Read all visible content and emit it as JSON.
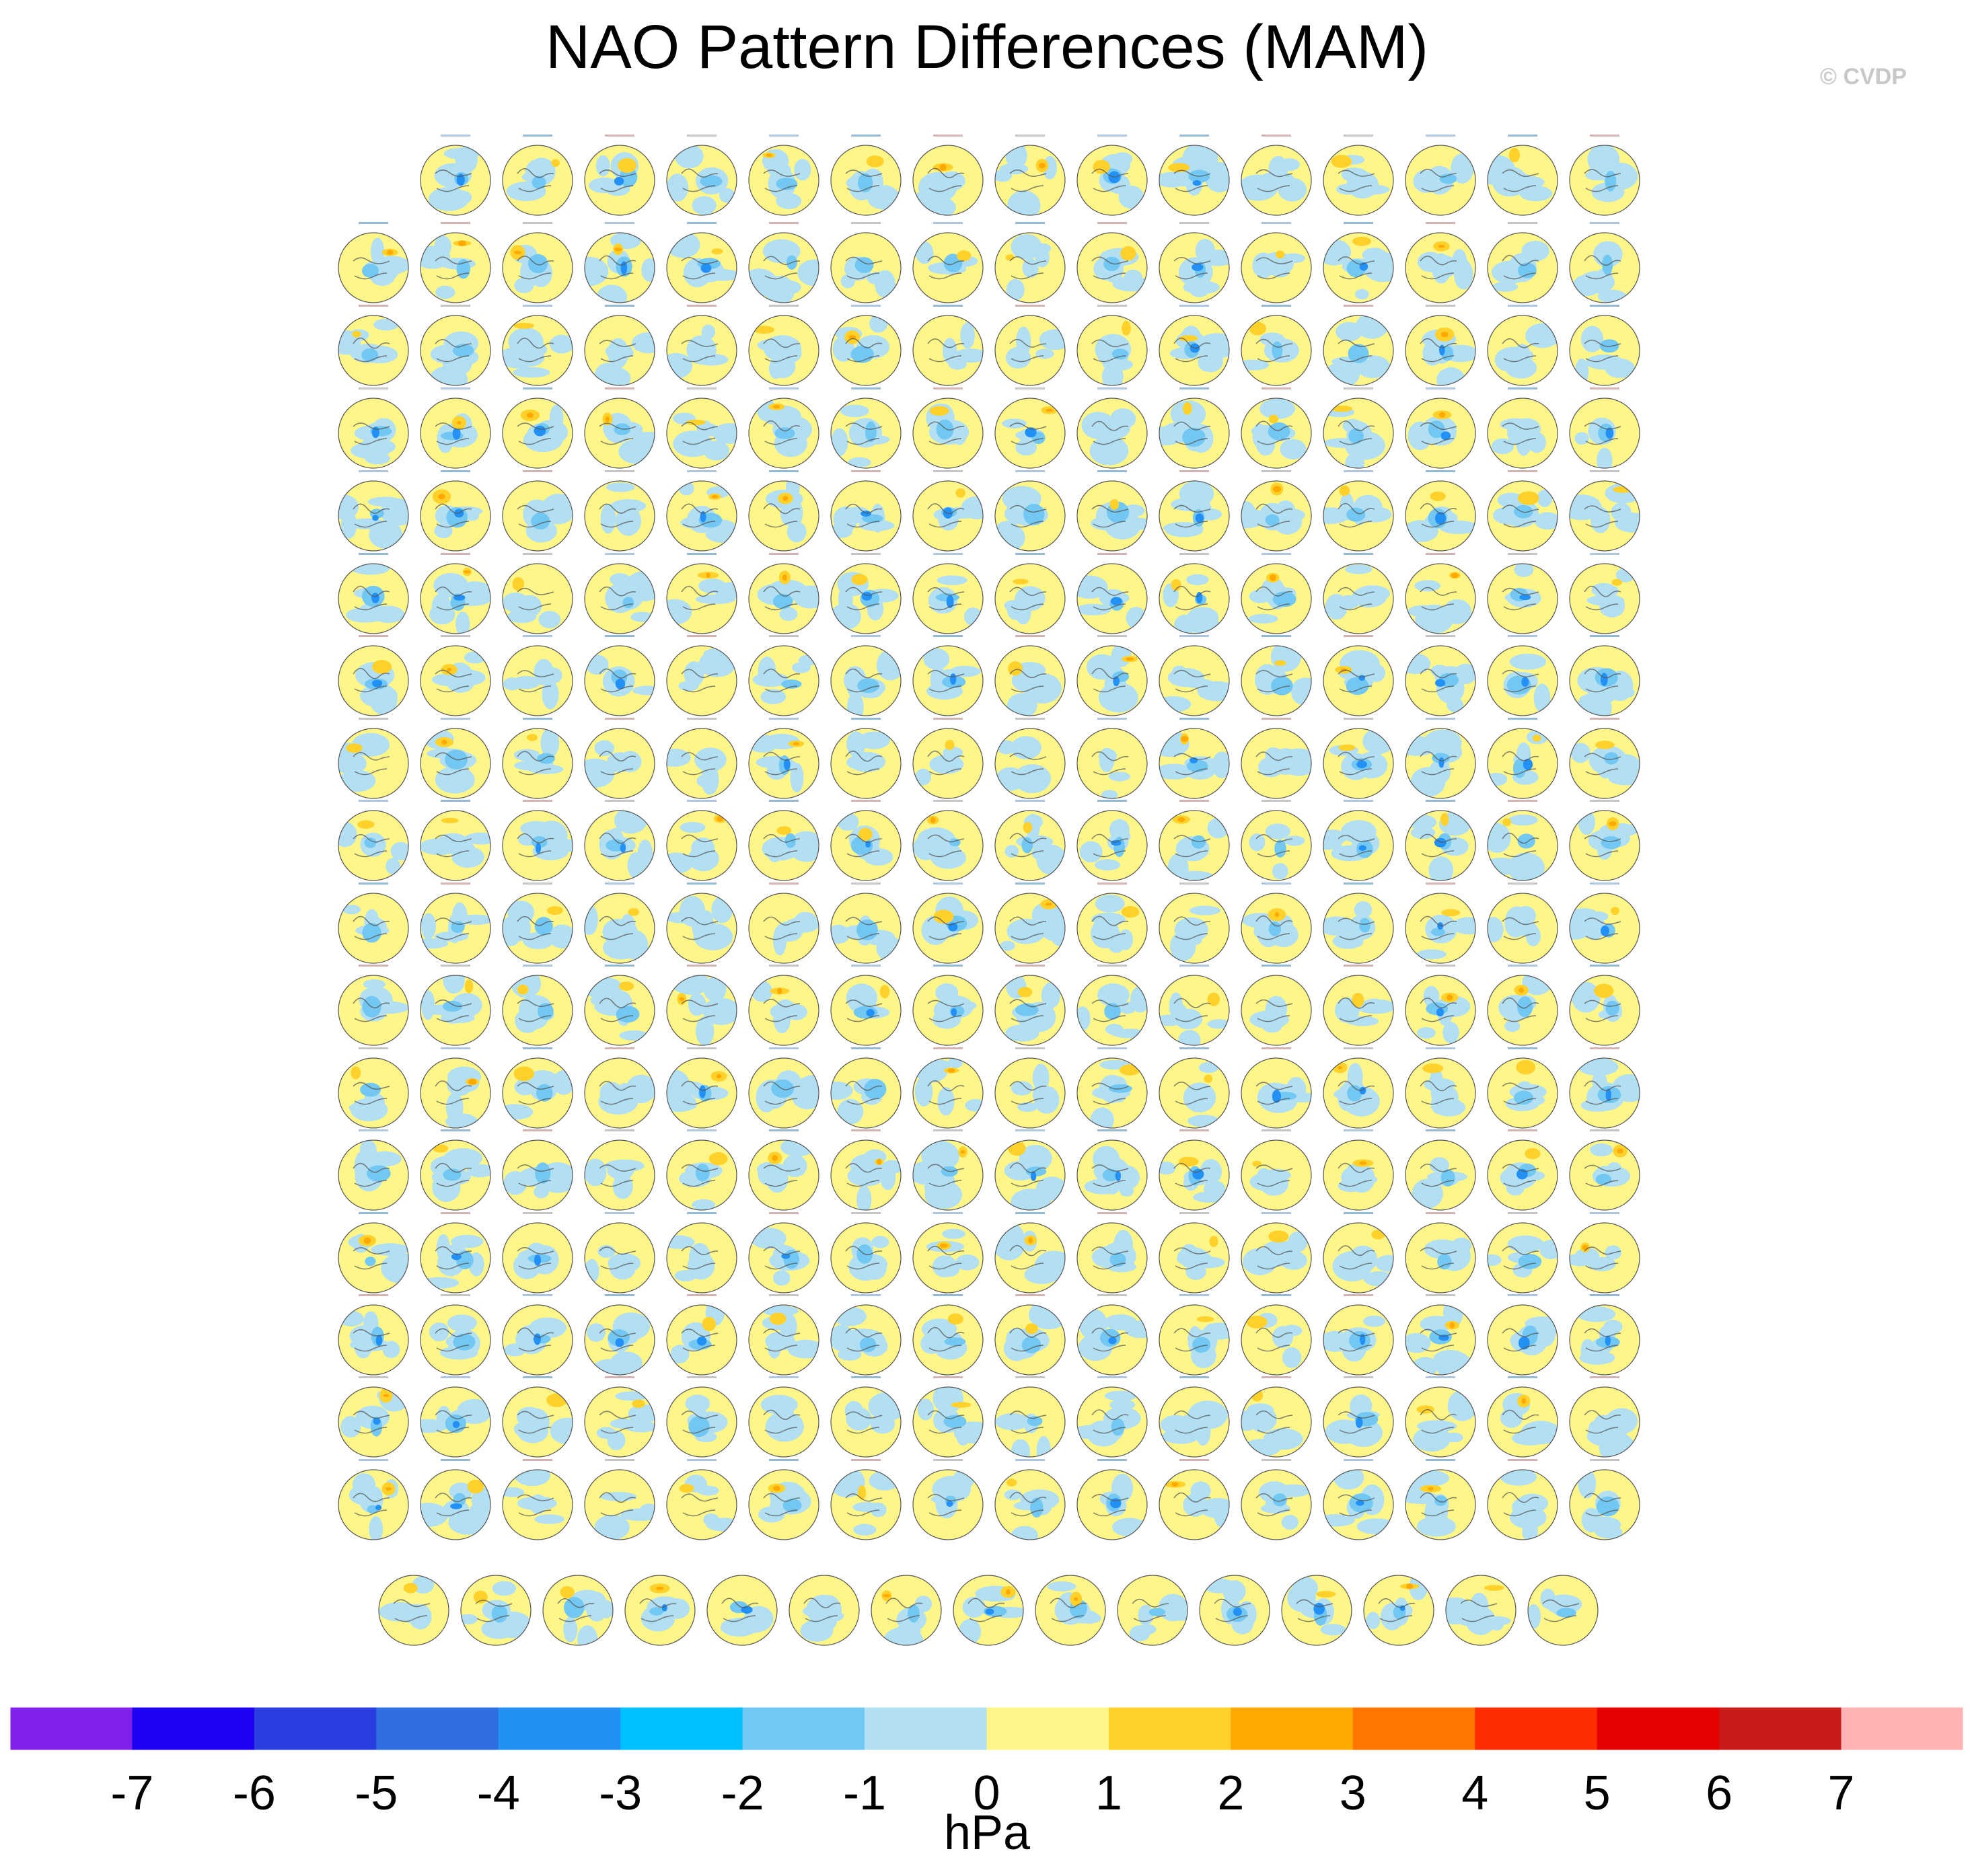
{
  "title": "NAO Pattern Differences (MAM)",
  "copyright": "© CVDP",
  "colorbar": {
    "units": "hPa",
    "tick_labels": [
      "-7",
      "-6",
      "-5",
      "-4",
      "-3",
      "-2",
      "-1",
      "0",
      "1",
      "2",
      "3",
      "4",
      "5",
      "6",
      "7"
    ],
    "colors": [
      "#8020e8",
      "#1e00f5",
      "#2a3ee0",
      "#2f6fe0",
      "#2390f5",
      "#00c0ff",
      "#72c8f2",
      "#b2dff2",
      "#fff68a",
      "#ffd12a",
      "#ffa800",
      "#ff7500",
      "#ff2c00",
      "#e50000",
      "#ca1a1a",
      "#ffb3b5"
    ]
  },
  "chart_data": {
    "type": "heatmap",
    "title": "NAO Pattern Differences (MAM)",
    "description_kind": "small-multiple polar maps of sea level pressure NAO pattern differences",
    "grid": {
      "rows": [
        15,
        16,
        16,
        16,
        16,
        16,
        16,
        16,
        16,
        16,
        16,
        16,
        16,
        16,
        16,
        16,
        16,
        15
      ]
    },
    "colorbar_levels": [
      -7,
      -6,
      -5,
      -4,
      -3,
      -2,
      -1,
      0,
      1,
      2,
      3,
      4,
      5,
      6,
      7
    ],
    "units": "hPa"
  }
}
